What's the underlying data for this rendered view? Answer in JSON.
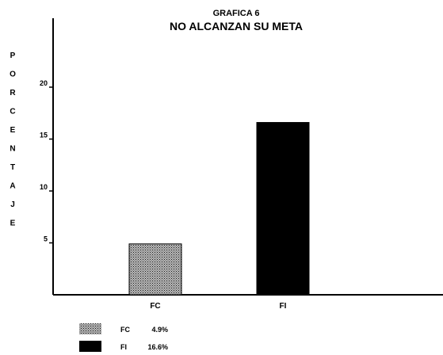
{
  "chart_data": {
    "type": "bar",
    "title": "GRAFICA 6",
    "subtitle": "NO ALCANZAN SU META",
    "ylabel": "PORCENTAJE",
    "xlabel": "",
    "categories": [
      "FC",
      "FI"
    ],
    "values": [
      4.9,
      16.6
    ],
    "bar_colors": [
      "#8a8a8a",
      "#000000"
    ],
    "bar_patterns": [
      "dotted-gray",
      "solid-black"
    ],
    "yticks": [
      5,
      10,
      15,
      20
    ],
    "ylim": [
      0,
      27
    ],
    "grid": false,
    "legend": {
      "placement": "bottom-left",
      "entries": [
        {
          "label": "FC",
          "value_text": "4.9%"
        },
        {
          "label": "FI",
          "value_text": "16.6%"
        }
      ]
    }
  }
}
